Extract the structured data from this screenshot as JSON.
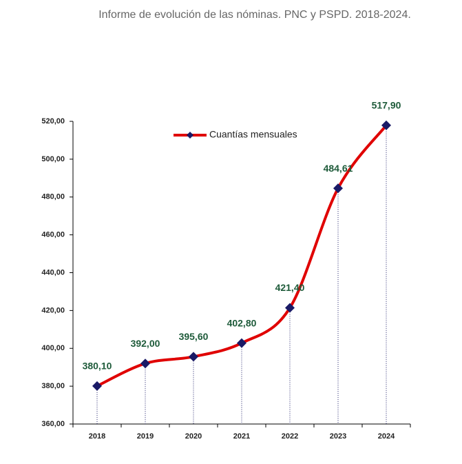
{
  "chart_data": {
    "type": "line",
    "title": "Informe de evolución de las nóminas. PNC y PSPD. 2018-2024.",
    "categories": [
      "2018",
      "2019",
      "2020",
      "2021",
      "2022",
      "2023",
      "2024"
    ],
    "series": [
      {
        "name": "Cuantías mensuales",
        "color": "#e00000",
        "marker_color": "#1a1a66",
        "values": [
          380.1,
          392.0,
          395.6,
          402.8,
          421.4,
          484.61,
          517.9
        ],
        "value_labels": [
          "380,10",
          "392,00",
          "395,60",
          "402,80",
          "421,40",
          "484,61",
          "517,90"
        ]
      }
    ],
    "ylim": [
      360,
      520
    ],
    "yticks": [
      {
        "value": 360,
        "label": "360,00"
      },
      {
        "value": 380,
        "label": "380,00"
      },
      {
        "value": 400,
        "label": "400,00"
      },
      {
        "value": 420,
        "label": "420,00"
      },
      {
        "value": 440,
        "label": "440,00"
      },
      {
        "value": 460,
        "label": "460,00"
      },
      {
        "value": 480,
        "label": "480,00"
      },
      {
        "value": 500,
        "label": "500,00"
      },
      {
        "value": 520,
        "label": "520,00"
      }
    ],
    "smooth": true,
    "drop_lines": true
  }
}
